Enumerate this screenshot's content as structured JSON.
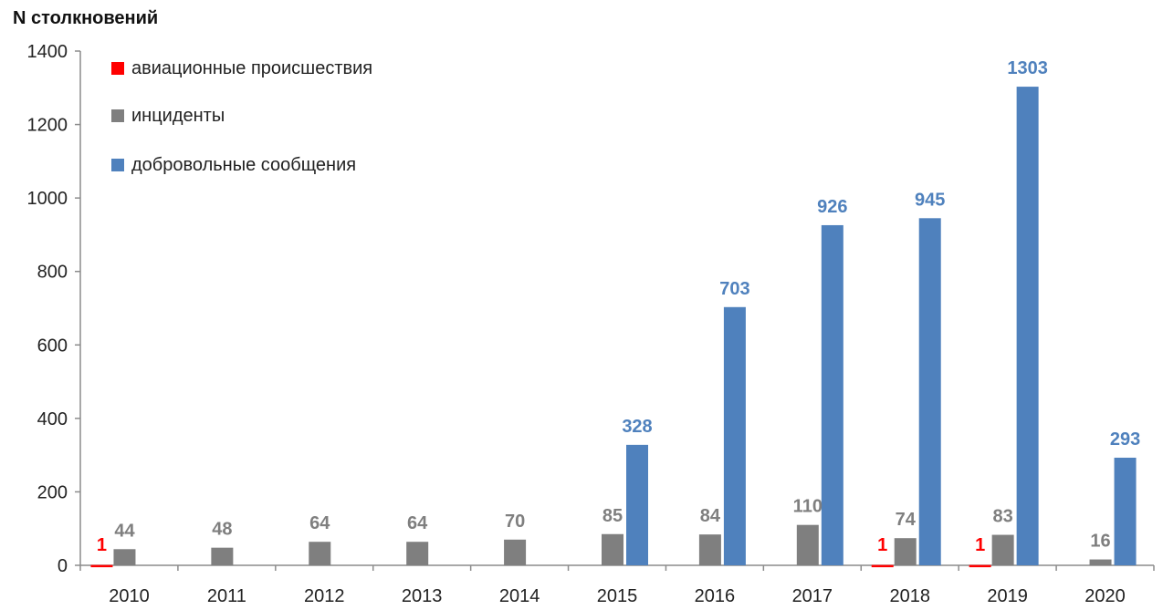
{
  "chart_data": {
    "type": "bar",
    "title": "",
    "ylabel": "N столкновений",
    "xlabel": "",
    "ylim": [
      0,
      1400
    ],
    "yticks": [
      "0",
      "200",
      "400",
      "600",
      "800",
      "1000",
      "1200",
      "1400"
    ],
    "categories": [
      "2010",
      "2011",
      "2012",
      "2013",
      "2014",
      "2015",
      "2016",
      "2017",
      "2018",
      "2019",
      "2020"
    ],
    "legend_position": "top-left",
    "grid": false,
    "series": [
      {
        "name": "авиационные происшествия",
        "color": "#ff0000",
        "values": [
          1,
          0,
          0,
          0,
          0,
          0,
          0,
          0,
          1,
          1,
          0
        ],
        "labels": [
          "1",
          "",
          "",
          "",
          "",
          "",
          "",
          "",
          "1",
          "1",
          ""
        ]
      },
      {
        "name": "инциденты",
        "color": "#7f7f7f",
        "values": [
          44,
          48,
          64,
          64,
          70,
          85,
          84,
          110,
          74,
          83,
          16
        ],
        "labels": [
          "44",
          "48",
          "64",
          "64",
          "70",
          "85",
          "84",
          "110",
          "74",
          "83",
          "16"
        ]
      },
      {
        "name": "добровольные сообщения",
        "color": "#4f81bd",
        "values": [
          0,
          0,
          0,
          0,
          0,
          328,
          703,
          926,
          945,
          1303,
          293
        ],
        "labels": [
          "",
          "",
          "",
          "",
          "",
          "328",
          "703",
          "926",
          "945",
          "1303",
          "293"
        ]
      }
    ]
  }
}
